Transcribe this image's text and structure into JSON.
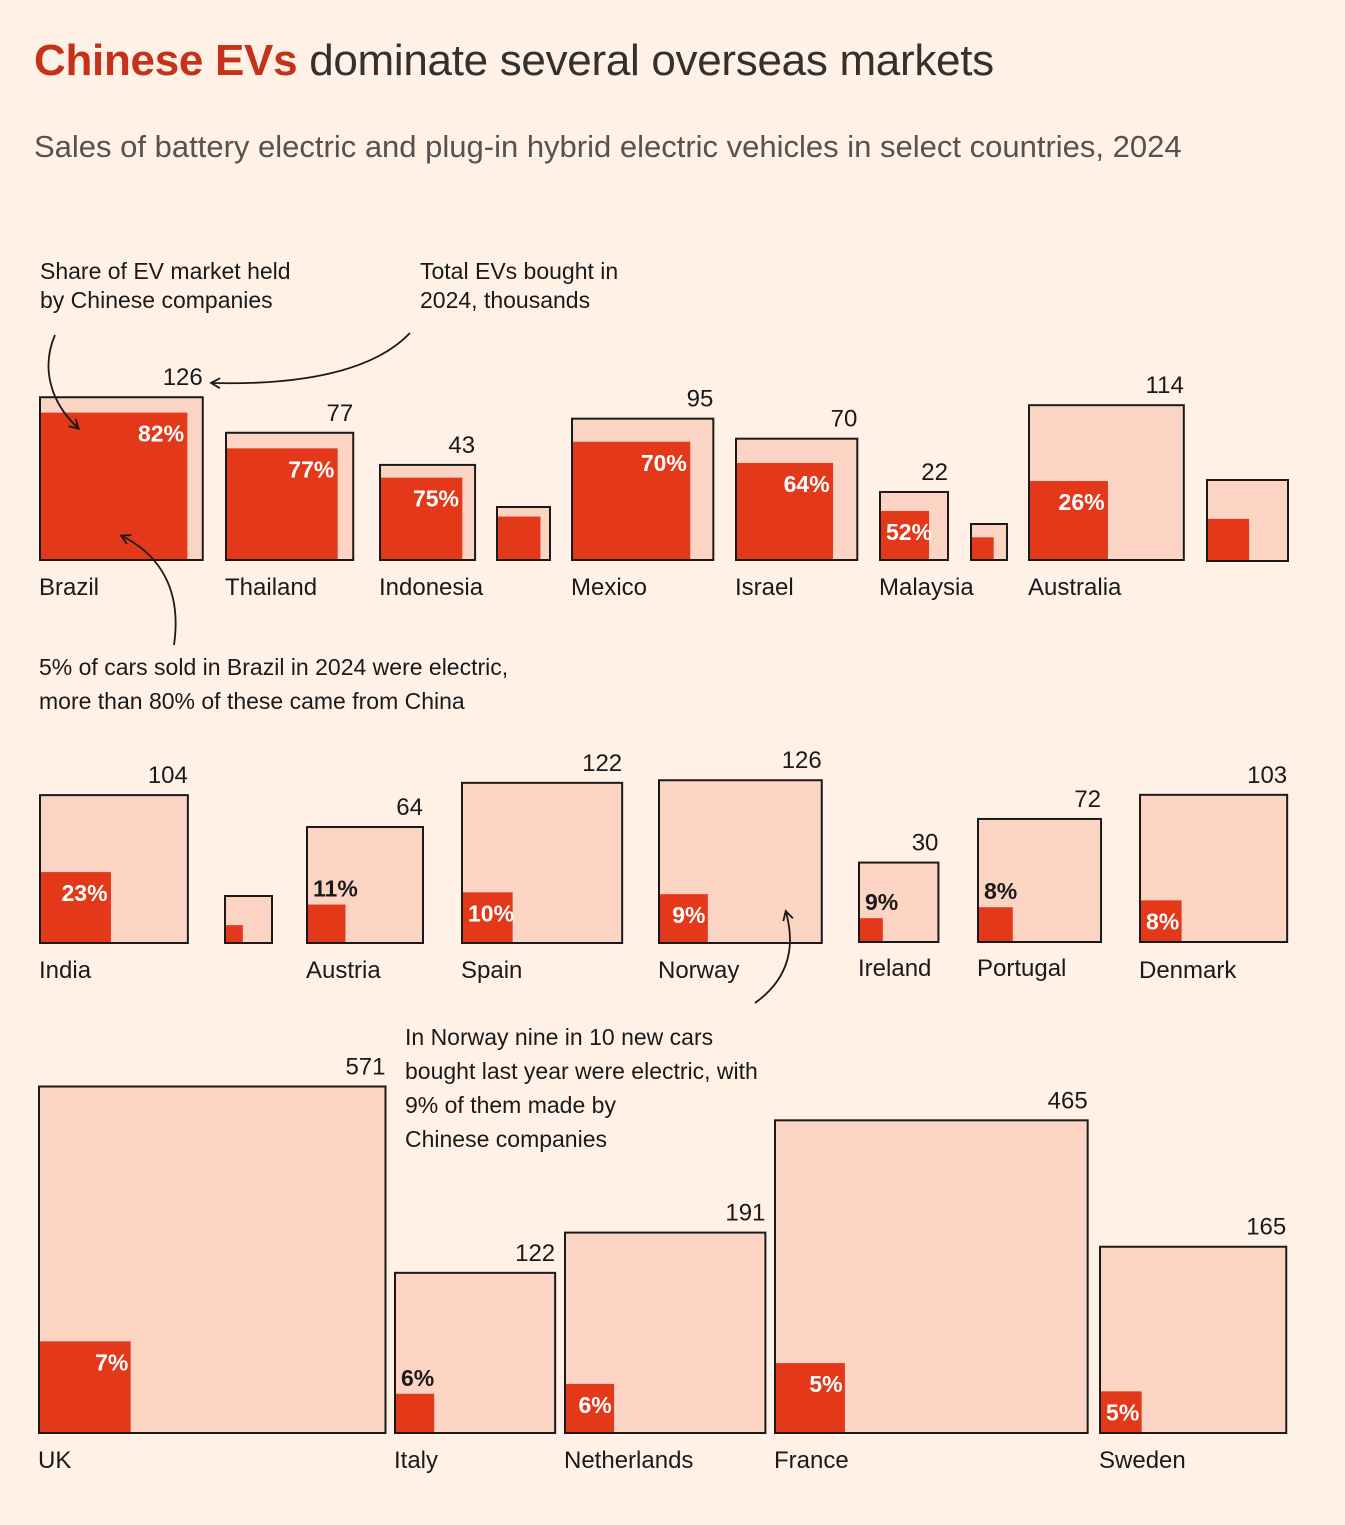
{
  "title": {
    "accent": "Chinese EVs",
    "rest": " dominate several overseas markets"
  },
  "subtitle": "Sales of battery electric and plug-in hybrid electric vehicles in select countries, 2024",
  "colors": {
    "background": "#fff1e5",
    "total_fill": "#fbd4c3",
    "chinese_fill": "#e4381b",
    "outline": "#1a1a1a"
  },
  "annotations": {
    "share_legend": [
      "Share of EV market held",
      "by Chinese companies"
    ],
    "total_legend": [
      "Total EVs bought in",
      "2024, thousands"
    ],
    "brazil_note": [
      "5% of cars sold in Brazil in 2024 were electric,",
      "more than 80% of these came from China"
    ],
    "norway_note": [
      "In Norway nine in 10 new cars",
      "bought last year were electric, with",
      "9% of them made by",
      "Chinese companies"
    ]
  },
  "chart_data": {
    "type": "proportional-square",
    "title": "Chinese EVs dominate several overseas markets",
    "subtitle": "Sales of battery electric and plug-in hybrid electric vehicles in select countries, 2024",
    "size_measure": "Total EVs bought in 2024, thousands",
    "inner_measure": "Share of EV market held by Chinese companies (%)",
    "countries": [
      {
        "name": "Brazil",
        "total": 126,
        "share": 82,
        "share_label": "82%"
      },
      {
        "name": "Thailand",
        "total": 77,
        "share": 77,
        "share_label": "77%"
      },
      {
        "name": "Indonesia",
        "total": 43,
        "share": 75,
        "share_label": "75%"
      },
      {
        "name": "",
        "total": null,
        "share": null
      },
      {
        "name": "Mexico",
        "total": 95,
        "share": 70,
        "share_label": "70%"
      },
      {
        "name": "Israel",
        "total": 70,
        "share": 64,
        "share_label": "64%"
      },
      {
        "name": "Malaysia",
        "total": 22,
        "share": 52,
        "share_label": "52%"
      },
      {
        "name": "",
        "total": null,
        "share": null
      },
      {
        "name": "Australia",
        "total": 114,
        "share": 26,
        "share_label": "26%"
      },
      {
        "name": "",
        "total": null,
        "share": null
      },
      {
        "name": "India",
        "total": 104,
        "share": 23,
        "share_label": "23%"
      },
      {
        "name": "",
        "total": null,
        "share": null
      },
      {
        "name": "Austria",
        "total": 64,
        "share": 11,
        "share_label": "11%"
      },
      {
        "name": "Spain",
        "total": 122,
        "share": 10,
        "share_label": "10%"
      },
      {
        "name": "Norway",
        "total": 126,
        "share": 9,
        "share_label": "9%"
      },
      {
        "name": "Ireland",
        "total": 30,
        "share": 9,
        "share_label": "9%"
      },
      {
        "name": "Portugal",
        "total": 72,
        "share": 8,
        "share_label": "8%"
      },
      {
        "name": "Denmark",
        "total": 103,
        "share": 8,
        "share_label": "8%"
      },
      {
        "name": "UK",
        "total": 571,
        "share": 7,
        "share_label": "7%"
      },
      {
        "name": "Italy",
        "total": 122,
        "share": 6,
        "share_label": "6%"
      },
      {
        "name": "Netherlands",
        "total": 191,
        "share": 6,
        "share_label": "6%"
      },
      {
        "name": "France",
        "total": 465,
        "share": 5,
        "share_label": "5%"
      },
      {
        "name": "Sweden",
        "total": 165,
        "share": 5,
        "share_label": "5%"
      }
    ]
  }
}
